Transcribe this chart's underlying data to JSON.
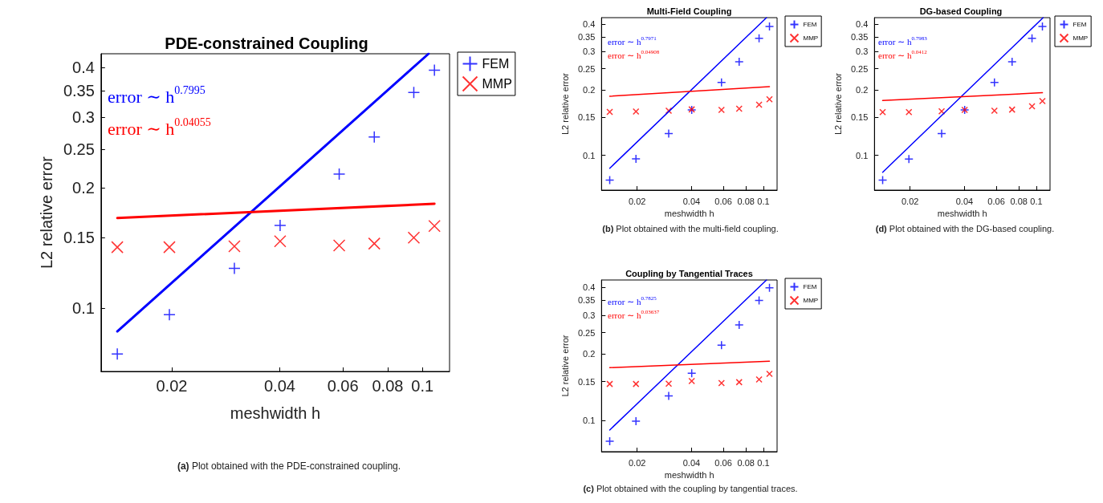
{
  "chart_data": [
    {
      "type": "scatter",
      "title": "PDE-constrained Coupling",
      "xlabel": "meshwidth h",
      "ylabel": "L2 relative error",
      "log": "xy",
      "grid": false,
      "legend": "top right",
      "xlim": [
        0.0127,
        0.119
      ],
      "ylim": [
        0.0694,
        0.433
      ],
      "xticks": [
        0.02,
        0.04,
        0.06,
        0.08,
        0.1
      ],
      "yticks": [
        0.1,
        0.15,
        0.2,
        0.25,
        0.3,
        0.35,
        0.4
      ],
      "annotations": [
        "error ∼ h$^{0.7995}$",
        "error ∼ h$^{0.04055}$",
        "(a) Plot obtained with the PDE-constrained coupling."
      ],
      "series": [
        {
          "name": "FEM",
          "marker": "plus",
          "color": "#0000ff",
          "x": [
            0.0141,
            0.0197,
            0.0299,
            0.0401,
            0.0586,
            0.0734,
            0.0946,
            0.108
          ],
          "values": [
            0.0767,
            0.0962,
            0.1257,
            0.161,
            0.2163,
            0.268,
            0.3465,
            0.394
          ]
        },
        {
          "name": "MMP",
          "marker": "cross",
          "color": "#ff0000",
          "x": [
            0.0141,
            0.0197,
            0.0299,
            0.0401,
            0.0586,
            0.0734,
            0.0946,
            0.108
          ],
          "values": [
            0.142,
            0.142,
            0.1427,
            0.147,
            0.1434,
            0.145,
            0.15,
            0.1604
          ]
        },
        {
          "type": "line",
          "marker": "none",
          "color": "#0000ff",
          "x": [
            0.0141,
            0.104
          ],
          "values": [
            0.0874,
            0.433
          ]
        },
        {
          "type": "line",
          "marker": "none",
          "color": "#ff0000",
          "x": [
            0.0141,
            0.108
          ],
          "values": [
            0.168,
            0.1824
          ]
        }
      ]
    },
    {
      "type": "scatter",
      "title": "Multi-Field Coupling",
      "xlabel": "meshwidth h",
      "ylabel": "L2 relative error",
      "log": "xy",
      "grid": false,
      "legend": "top right",
      "xlim": [
        0.0127,
        0.119
      ],
      "ylim": [
        0.0693,
        0.429
      ],
      "xticks": [
        0.02,
        0.04,
        0.06,
        0.08,
        0.1
      ],
      "yticks": [
        0.1,
        0.15,
        0.2,
        0.25,
        0.3,
        0.35,
        0.4
      ],
      "annotations": [
        "error ∼ h$^{0.7971}$",
        "error ∼ h$^{0.04908}$",
        "(b) Plot obtained with the multi-field coupling."
      ],
      "series": [
        {
          "name": "FEM",
          "marker": "plus",
          "color": "#0000ff",
          "x": [
            0.0141,
            0.0197,
            0.0299,
            0.0401,
            0.0586,
            0.0734,
            0.0946,
            0.108
          ],
          "values": [
            0.0771,
            0.0964,
            0.126,
            0.1618,
            0.2165,
            0.269,
            0.345,
            0.391
          ]
        },
        {
          "name": "MMP",
          "marker": "cross",
          "color": "#ff0000",
          "x": [
            0.0141,
            0.0197,
            0.0299,
            0.0401,
            0.0586,
            0.0734,
            0.0946,
            0.108
          ],
          "values": [
            0.1585,
            0.159,
            0.1604,
            0.1627,
            0.1618,
            0.164,
            0.171,
            0.181
          ]
        },
        {
          "type": "line",
          "marker": "none",
          "color": "#0000ff",
          "x": [
            0.0141,
            0.104
          ],
          "values": [
            0.0873,
            0.429
          ]
        },
        {
          "type": "line",
          "marker": "none",
          "color": "#ff0000",
          "x": [
            0.0141,
            0.108
          ],
          "values": [
            0.187,
            0.207
          ]
        }
      ]
    },
    {
      "type": "scatter",
      "title": "DG-based Coupling",
      "xlabel": "meshwidth h",
      "ylabel": "L2 relative error",
      "log": "xy",
      "grid": false,
      "legend": "top right",
      "xlim": [
        0.0127,
        0.119
      ],
      "ylim": [
        0.0693,
        0.429
      ],
      "xticks": [
        0.02,
        0.04,
        0.06,
        0.08,
        0.1
      ],
      "yticks": [
        0.1,
        0.15,
        0.2,
        0.25,
        0.3,
        0.35,
        0.4
      ],
      "annotations": [
        "error ∼ h$^{0.7983}$",
        "error ∼ h$^{0.0412}$",
        "(d) Plot obtained with the DG-based coupling."
      ],
      "series": [
        {
          "name": "FEM",
          "marker": "plus",
          "color": "#0000ff",
          "x": [
            0.0141,
            0.0197,
            0.0299,
            0.0401,
            0.0586,
            0.0734,
            0.0946,
            0.108
          ],
          "values": [
            0.0771,
            0.0962,
            0.126,
            0.1618,
            0.2165,
            0.269,
            0.345,
            0.391
          ]
        },
        {
          "name": "MMP",
          "marker": "cross",
          "color": "#ff0000",
          "x": [
            0.0141,
            0.0197,
            0.0299,
            0.0401,
            0.0586,
            0.0734,
            0.0946,
            0.108
          ],
          "values": [
            0.158,
            0.158,
            0.1595,
            0.1618,
            0.1604,
            0.1623,
            0.168,
            0.1775
          ]
        },
        {
          "type": "line",
          "marker": "none",
          "color": "#0000ff",
          "x": [
            0.0141,
            0.109
          ],
          "values": [
            0.0837,
            0.429
          ]
        },
        {
          "type": "line",
          "marker": "none",
          "color": "#ff0000",
          "x": [
            0.0141,
            0.108
          ],
          "values": [
            0.1786,
            0.194
          ]
        }
      ]
    },
    {
      "type": "scatter",
      "title": "Coupling by Tangential Traces",
      "xlabel": "meshwidth h",
      "ylabel": "L2 relative error",
      "log": "xy",
      "grid": false,
      "legend": "top right",
      "xlim": [
        0.0127,
        0.119
      ],
      "ylim": [
        0.0721,
        0.433
      ],
      "xticks": [
        0.02,
        0.04,
        0.06,
        0.08,
        0.1
      ],
      "yticks": [
        0.1,
        0.15,
        0.2,
        0.25,
        0.3,
        0.35,
        0.4
      ],
      "annotations": [
        "error ∼ h$^{0.7825}$",
        "error ∼ h$^{0.03637}$",
        "(c) Plot obtained with the coupling by tangential traces."
      ],
      "series": [
        {
          "name": "FEM",
          "marker": "plus",
          "color": "#0000ff",
          "x": [
            0.0141,
            0.0197,
            0.0299,
            0.0401,
            0.0586,
            0.0734,
            0.0946,
            0.108
          ],
          "values": [
            0.0804,
            0.0992,
            0.129,
            0.1636,
            0.219,
            0.271,
            0.35,
            0.399
          ]
        },
        {
          "name": "MMP",
          "marker": "cross",
          "color": "#ff0000",
          "x": [
            0.0141,
            0.0197,
            0.0299,
            0.0401,
            0.0586,
            0.0734,
            0.0946,
            0.108
          ],
          "values": [
            0.1462,
            0.1462,
            0.1467,
            0.1508,
            0.1475,
            0.149,
            0.1533,
            0.1626
          ]
        },
        {
          "type": "line",
          "marker": "none",
          "color": "#0000ff",
          "x": [
            0.0141,
            0.104
          ],
          "values": [
            0.0904,
            0.433
          ]
        },
        {
          "type": "line",
          "marker": "none",
          "color": "#ff0000",
          "x": [
            0.0141,
            0.108
          ],
          "values": [
            0.1734,
            0.1855
          ]
        }
      ]
    }
  ]
}
